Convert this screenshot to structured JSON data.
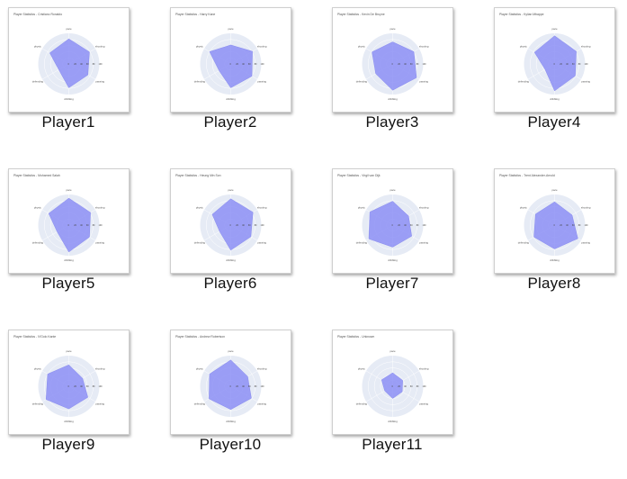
{
  "view": {
    "name": "file-explorer-large-icons"
  },
  "colors": {
    "radar_fill": "#8c8ff4",
    "radar_bg": "#e6ebf5",
    "label": "#111111"
  },
  "axis_labels": [
    "pace",
    "shooting",
    "passing",
    "dribbling",
    "defending",
    "physic"
  ],
  "tick_labels": [
    "0",
    "20",
    "40",
    "60",
    "80",
    "100"
  ],
  "files": [
    {
      "label": "Player1",
      "title": "Player Statistics - Cristiano Ronaldo",
      "stats": [
        0.82,
        0.78,
        0.72,
        0.78,
        0.38,
        0.72
      ]
    },
    {
      "label": "Player2",
      "title": "Player Statistics - Harry Kane",
      "stats": [
        0.62,
        0.82,
        0.8,
        0.78,
        0.44,
        0.8
      ]
    },
    {
      "label": "Player3",
      "title": "Player Statistics - Kevin De Bruyne",
      "stats": [
        0.72,
        0.8,
        0.9,
        0.86,
        0.64,
        0.78
      ]
    },
    {
      "label": "Player4",
      "title": "Player Statistics - Kylian Mbappe",
      "stats": [
        0.92,
        0.82,
        0.78,
        0.88,
        0.36,
        0.76
      ]
    },
    {
      "label": "Player5",
      "title": "Player Statistics - Mohamed Salah",
      "stats": [
        0.88,
        0.82,
        0.78,
        0.88,
        0.44,
        0.76
      ]
    },
    {
      "label": "Player6",
      "title": "Player Statistics - Heung Min Son",
      "stats": [
        0.86,
        0.84,
        0.76,
        0.82,
        0.42,
        0.7
      ]
    },
    {
      "label": "Player7",
      "title": "Player Statistics - Virgil van Dijk",
      "stats": [
        0.78,
        0.6,
        0.72,
        0.72,
        0.9,
        0.86
      ]
    },
    {
      "label": "Player8",
      "title": "Player Statistics - Trent Alexander-Arnold",
      "stats": [
        0.76,
        0.66,
        0.88,
        0.78,
        0.78,
        0.72
      ]
    },
    {
      "label": "Player9",
      "title": "Player Statistics - N'Golo Kante",
      "stats": [
        0.7,
        0.52,
        0.72,
        0.74,
        0.86,
        0.8
      ]
    },
    {
      "label": "Player10",
      "title": "Player Statistics - Andrew Robertson",
      "stats": [
        0.86,
        0.64,
        0.78,
        0.76,
        0.82,
        0.8
      ]
    },
    {
      "label": "Player11",
      "title": "Player Statistics - Unknown",
      "stats": [
        0.44,
        0.38,
        0.36,
        0.4,
        0.3,
        0.42
      ]
    }
  ]
}
